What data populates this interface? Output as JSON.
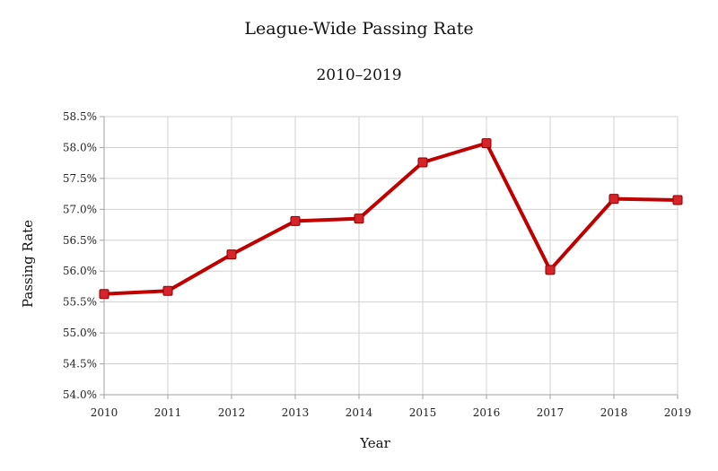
{
  "chart_data": {
    "type": "line",
    "title": "League-Wide Passing Rate",
    "subtitle": "2010–2019",
    "xlabel": "Year",
    "ylabel": "Passing Rate",
    "categories": [
      "2010",
      "2011",
      "2012",
      "2013",
      "2014",
      "2015",
      "2016",
      "2017",
      "2018",
      "2019"
    ],
    "series": [
      {
        "values": [
          55.63,
          55.68,
          56.27,
          56.81,
          56.85,
          57.76,
          58.07,
          56.02,
          57.17,
          57.15
        ]
      }
    ],
    "ylim": [
      54.0,
      58.5
    ],
    "yticks": [
      "54.0%",
      "54.5%",
      "55.0%",
      "55.5%",
      "56.0%",
      "56.5%",
      "57.0%",
      "57.5%",
      "58.0%",
      "58.5%"
    ],
    "grid": true,
    "legend": "none",
    "colors": {
      "line": "#c00000",
      "marker": "#d8232a",
      "grid": "#d0d0d0",
      "axis": "#a0a0a0"
    }
  }
}
